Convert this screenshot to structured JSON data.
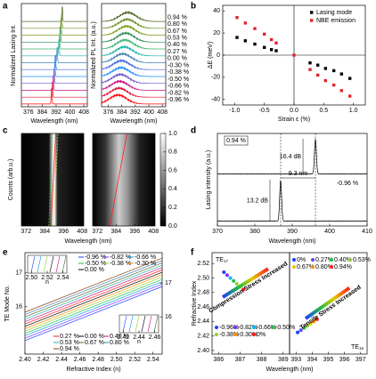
{
  "chart_data": [
    {
      "type": "lasing_spectra",
      "label": "a",
      "xlabel": "Wavelength (nm)",
      "ylabel": "Normalized Lasing Int.",
      "xlim": [
        372,
        410
      ],
      "xticks": [
        376,
        384,
        392,
        400,
        408
      ],
      "peaks": [
        395.6,
        395.2,
        394.8,
        394.4,
        394.0,
        393.6,
        392.6,
        391.6,
        391.3,
        390.9,
        390.4,
        389.9,
        389.4
      ],
      "colors": [
        "#556b2f",
        "#6b8e23",
        "#7f9a1a",
        "#2e8b57",
        "#3cb371",
        "#20b2aa",
        "#4682b4",
        "#4169e1",
        "#1e90ff",
        "#6a5acd",
        "#c71585",
        "#dc143c",
        "#ff0000"
      ]
    },
    {
      "type": "pl_spectra",
      "xlabel": "Wavelength (nm)",
      "ylabel": "Normalized PL Int. (a.u.)",
      "xlim": [
        372,
        410
      ],
      "xticks": [
        376,
        384,
        392,
        400,
        408
      ],
      "peaks": [
        387.5,
        387.1,
        386.7,
        386.3,
        385.9,
        385.5,
        384.6,
        383.8,
        383.5,
        383.1,
        382.7,
        382.3,
        381.8
      ],
      "colors": [
        "#556b2f",
        "#6b8e23",
        "#7f9a1a",
        "#2e8b57",
        "#3cb371",
        "#20b2aa",
        "#4682b4",
        "#4169e1",
        "#1e90ff",
        "#6a5acd",
        "#c71585",
        "#dc143c",
        "#ff0000"
      ],
      "series_labels": [
        "0.94 %",
        "0.80 %",
        "0.67 %",
        "0.53 %",
        "0.40 %",
        "0.27 %",
        "0.00 %",
        "-0.30 %",
        "-0.38 %",
        "-0.50 %",
        "-0.66 %",
        "-0.82 %",
        "-0.96 %"
      ]
    },
    {
      "type": "scatter",
      "label": "b",
      "xlabel": "Strain ε (%)",
      "ylabel": "ΔE (meV)",
      "xlim": [
        -1.2,
        1.2
      ],
      "ylim": [
        -45,
        45
      ],
      "xticks": [
        {
          "value": -1,
          "label": "-1.0"
        },
        {
          "value": -0.5,
          "label": "-0.5"
        },
        {
          "value": 0,
          "label": "0.0"
        },
        0.5,
        {
          "value": 1,
          "label": "1.0"
        }
      ],
      "yticks": [
        -40,
        -20,
        0,
        20,
        40
      ],
      "legend": "upper right",
      "series": [
        {
          "name": "Lasing mode",
          "color": "#000000",
          "x": [
            -0.96,
            -0.82,
            -0.66,
            -0.5,
            -0.38,
            -0.3,
            0.27,
            0.4,
            0.53,
            0.67,
            0.8,
            0.94
          ],
          "values": [
            16,
            13,
            10,
            7,
            5,
            4,
            -7,
            -9,
            -12,
            -14,
            -17,
            -21
          ]
        },
        {
          "name": "NBE emission",
          "color": "#e3242b",
          "x": [
            -0.96,
            -0.82,
            -0.66,
            -0.5,
            -0.38,
            -0.3,
            0,
            0.27,
            0.4,
            0.53,
            0.67,
            0.8,
            0.94
          ],
          "values": [
            34,
            29,
            24,
            19,
            14,
            11,
            0,
            -13,
            -18,
            -23,
            -27,
            -32,
            -37
          ]
        }
      ]
    },
    {
      "type": "heatmap",
      "label": "c",
      "xlabel": "Wavelength (nm)",
      "ylabel": "Counts (arb.u.)",
      "xlim": [
        369,
        409
      ],
      "xticks": [
        372,
        384,
        396,
        408
      ],
      "zlim": [
        0,
        1
      ],
      "zticks": [
        {
          "value": 0,
          "label": "0.0"
        },
        {
          "value": 0.2,
          "label": "0.2"
        },
        {
          "value": 0.4,
          "label": "0.4"
        },
        {
          "value": 0.6,
          "label": "0.6"
        },
        {
          "value": 0.8,
          "label": "0.8"
        },
        {
          "value": 1,
          "label": "1.0"
        }
      ]
    },
    {
      "type": "lasing_lines",
      "label": "d",
      "xlabel": "Wavelength (nm)",
      "ylabel": "Lasing intensity (a.u.)",
      "xlim": [
        370,
        410
      ],
      "xticks": [
        370,
        380,
        390,
        400,
        410
      ],
      "peaks": [
        396.2,
        386.9
      ],
      "series_labels": [
        "0.94 %",
        "-0.96 %"
      ],
      "annotations": [
        "16.4 dB",
        "13.2 dB",
        "9.3 nm"
      ]
    },
    {
      "type": "mode_lines",
      "label": "e",
      "xlabel": "Refractive Index (n)",
      "ylabel": "TE Mode No.",
      "xlim": [
        2.4,
        2.55
      ],
      "xticks": [
        {
          "value": 2.4,
          "label": "2.40"
        },
        {
          "value": 2.42,
          "label": "2.42"
        },
        {
          "value": 2.44,
          "label": "2.44"
        },
        {
          "value": 2.46,
          "label": "2.46"
        },
        {
          "value": 2.48,
          "label": "2.48"
        },
        {
          "value": 2.5,
          "label": "2.50"
        },
        {
          "value": 2.52,
          "label": "2.52"
        },
        {
          "value": 2.54,
          "label": "2.54"
        }
      ],
      "ylim": [
        14.6,
        17.6
      ],
      "yticks": [
        16,
        17
      ],
      "y2lim": [
        14.9,
        17.9
      ],
      "y2ticks": [
        16,
        17
      ],
      "x": [
        2.4,
        2.55
      ],
      "series": [
        {
          "name": "-0.96 %",
          "color": "#1f3fff",
          "values": [
            15.0,
            16.6
          ]
        },
        {
          "name": "-0.82 %",
          "color": "#7b2fff",
          "values": [
            15.07,
            16.67
          ]
        },
        {
          "name": "-0.66 %",
          "color": "#00a0e0",
          "values": [
            15.14,
            16.74
          ]
        },
        {
          "name": "-0.50 %",
          "color": "#1fbf3f",
          "values": [
            15.21,
            16.81
          ]
        },
        {
          "name": "-0.38 %",
          "color": "#9acd32",
          "values": [
            15.28,
            16.88
          ]
        },
        {
          "name": "-0.30 %",
          "color": "#ff8c00",
          "values": [
            15.35,
            16.95
          ]
        },
        {
          "name": "0.00 %",
          "color": "#000000",
          "values": [
            15.42,
            17.02
          ]
        },
        {
          "name": "0.27 %",
          "color": "#ff1a1a",
          "values": [
            15.49,
            17.09
          ]
        },
        {
          "name": "0.40 %",
          "color": "#c71585",
          "values": [
            15.56,
            17.16
          ]
        },
        {
          "name": "0.53 %",
          "color": "#20b2aa",
          "values": [
            15.63,
            17.23
          ]
        },
        {
          "name": "0.67 %",
          "color": "#556b2f",
          "values": [
            15.7,
            17.3
          ]
        },
        {
          "name": "0.80 %",
          "color": "#4682b4",
          "values": [
            15.77,
            17.37
          ]
        },
        {
          "name": "0.94 %",
          "color": "#8b4513",
          "values": [
            15.84,
            17.44
          ]
        }
      ],
      "insets": [
        {
          "xlabel": "n",
          "xlim": [
            2.495,
            2.545
          ],
          "xticks": [
            {
              "value": 2.5,
              "label": "2.50"
            },
            {
              "value": 2.52,
              "label": "2.52"
            },
            {
              "value": 2.54,
              "label": "2.54"
            }
          ]
        },
        {
          "xlabel": "n",
          "xlim": [
            2.415,
            2.465
          ],
          "xticks": [
            {
              "value": 2.42,
              "label": "2.42"
            },
            {
              "value": 2.44,
              "label": "2.44"
            },
            {
              "value": 2.46,
              "label": "2.46"
            }
          ]
        }
      ]
    },
    {
      "type": "index_scatter",
      "label": "f",
      "xlabel": "Wavelength (nm)",
      "ylabel": "Refractive Index",
      "ylim": [
        2.395,
        2.535
      ],
      "yticks": [
        {
          "value": 2.4,
          "label": "2.40"
        },
        {
          "value": 2.42,
          "label": "2.42"
        },
        {
          "value": 2.44,
          "label": "2.44"
        },
        {
          "value": 2.46,
          "label": "2.46"
        },
        {
          "value": 2.48,
          "label": "2.48"
        },
        {
          "value": 2.5,
          "label": "2.50"
        },
        {
          "value": 2.52,
          "label": "2.52"
        }
      ],
      "panels": [
        {
          "mode_label": "TE",
          "mode_number": "17",
          "annotation": "Compression Stress Increased",
          "xlim": [
            385.7,
            389.3
          ],
          "xticks": [
            386,
            387,
            388,
            389
          ],
          "names": [
            "-0.96%",
            "-0.82%",
            "-0.66%",
            "-0.50%",
            "-0.38%",
            "-0.30%",
            "0%"
          ],
          "colors": [
            "#1f3fff",
            "#7b2fff",
            "#00b7ff",
            "#1fbf3f",
            "#9acd32",
            "#ff8c00",
            "#ff1a1a"
          ],
          "x": [
            386.25,
            386.4,
            386.55,
            386.7,
            386.85,
            387.0,
            387.15
          ],
          "values": [
            2.508,
            2.504,
            2.5,
            2.496,
            2.492,
            2.488,
            2.484
          ]
        },
        {
          "mode_label": "TE",
          "mode_number": "16",
          "annotation": "Tensile Stress Increased",
          "xlim": [
            392.6,
            397.4
          ],
          "xticks": [
            393,
            394,
            395,
            396,
            397
          ],
          "names": [
            "0%",
            "0.27%",
            "0.40%",
            "0.53%",
            "0.67%",
            "0.80%",
            "0.94%"
          ],
          "colors": [
            "#1f3fff",
            "#5a4bff",
            "#1fbf3f",
            "#9acd32",
            "#e6c800",
            "#ff8c00",
            "#ff1a1a"
          ],
          "x": [
            393.1,
            393.3,
            393.5,
            393.7,
            393.9,
            394.1,
            394.3
          ],
          "values": [
            2.425,
            2.428,
            2.431,
            2.434,
            2.437,
            2.44,
            2.443
          ]
        }
      ]
    }
  ]
}
